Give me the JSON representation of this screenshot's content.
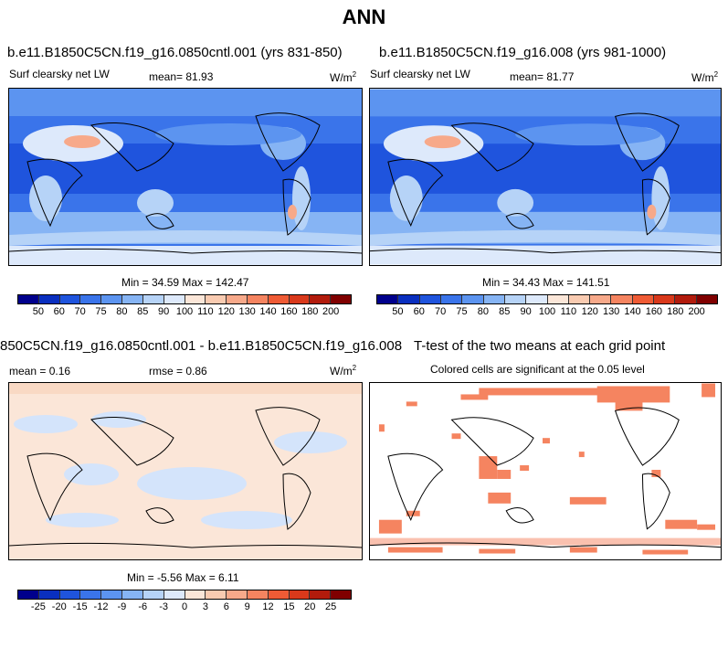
{
  "main_title": "ANN",
  "panels": {
    "p1": {
      "title": "b.e11.B1850C5CN.f19_g16.0850cntl.001 (yrs 831-850)",
      "left_label": "Surf clearsky net LW",
      "mean": "mean=  81.93",
      "units": "W/m",
      "units_sup": "2",
      "minmax": "Min =  34.59 Max = 142.47"
    },
    "p2": {
      "title": "b.e11.B1850C5CN.f19_g16.008 (yrs 981-1000)",
      "left_label": "Surf clearsky net LW",
      "mean": "mean=  81.77",
      "units": "W/m",
      "units_sup": "2",
      "minmax": "Min =  34.43 Max = 141.51"
    },
    "p3": {
      "title": "850C5CN.f19_g16.0850cntl.001 - b.e11.B1850C5CN.f19_g16.008",
      "mean": "mean =   0.16",
      "rmse": "rmse =   0.86",
      "units": "W/m",
      "units_sup": "2",
      "minmax": "Min =  -5.56 Max =   6.11"
    },
    "p4": {
      "title": "T-test of the two means at each grid point",
      "subtitle": "Colored cells are significant at the 0.05 level"
    }
  },
  "colorbars": {
    "abs": {
      "labels": [
        "50",
        "60",
        "70",
        "75",
        "80",
        "85",
        "90",
        "100",
        "110",
        "120",
        "130",
        "140",
        "160",
        "180",
        "200"
      ],
      "colors": [
        "#00008c",
        "#0a2fbf",
        "#1f54dd",
        "#3a74ea",
        "#5c94f0",
        "#86b4f4",
        "#b6d3f7",
        "#dde9fb",
        "#fbe6d8",
        "#f9cbb1",
        "#f7a98a",
        "#f58460",
        "#ef5b35",
        "#d9391b",
        "#b21b0c",
        "#800000"
      ]
    },
    "diff": {
      "labels": [
        "-25",
        "-20",
        "-15",
        "-12",
        "-9",
        "-6",
        "-3",
        "0",
        "3",
        "6",
        "9",
        "12",
        "15",
        "20",
        "25"
      ],
      "colors": [
        "#00008c",
        "#0a2fbf",
        "#1f54dd",
        "#3a74ea",
        "#5c94f0",
        "#86b4f4",
        "#b6d3f7",
        "#dde9fb",
        "#fbe6d8",
        "#f9cbb1",
        "#f7a98a",
        "#f58460",
        "#ef5b35",
        "#d9391b",
        "#b21b0c",
        "#800000"
      ]
    }
  },
  "colors": {
    "ocean_low": "#1f54dd",
    "ocean_mid": "#3a74ea",
    "land_light": "#dde9fb",
    "warm": "#f7a98a",
    "diff_pos": "#fbe6d8",
    "diff_neg": "#d4e4fb",
    "sig": "#f58460"
  }
}
